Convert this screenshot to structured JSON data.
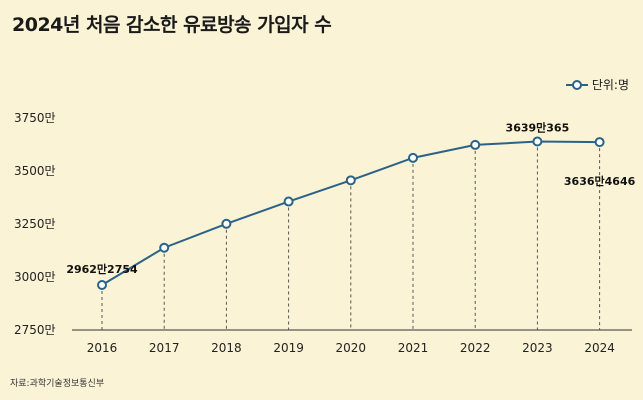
{
  "title": "2024년 처음 감소한 유료방송 가입자 수",
  "legend_label": "단위:명",
  "source": "자료:과학기술정보통신부",
  "colors": {
    "background": "#fbf3d6",
    "line": "#2b6287",
    "marker_fill": "#ffffff",
    "axis": "#333333",
    "grid_drop": "#555555"
  },
  "chart_data": {
    "type": "line",
    "title": "2024년 처음 감소한 유료방송 가입자 수",
    "x": [
      "2016",
      "2017",
      "2018",
      "2019",
      "2020",
      "2021",
      "2022",
      "2023",
      "2024"
    ],
    "series": [
      {
        "name": "단위:명",
        "values": [
          29622754,
          31380000,
          32510000,
          33560000,
          34560000,
          35620000,
          36230000,
          36390365,
          36364646
        ]
      }
    ],
    "ylim": [
      27500000,
      37500000
    ],
    "yticks": [
      "2750만",
      "3000만",
      "3250만",
      "3500만",
      "3750만"
    ],
    "annotations": [
      {
        "x": "2016",
        "text": "2962만2754"
      },
      {
        "x": "2023",
        "text": "3639만365"
      },
      {
        "x": "2024",
        "text": "3636만4646"
      }
    ],
    "grid": false,
    "legend": "top-right"
  }
}
